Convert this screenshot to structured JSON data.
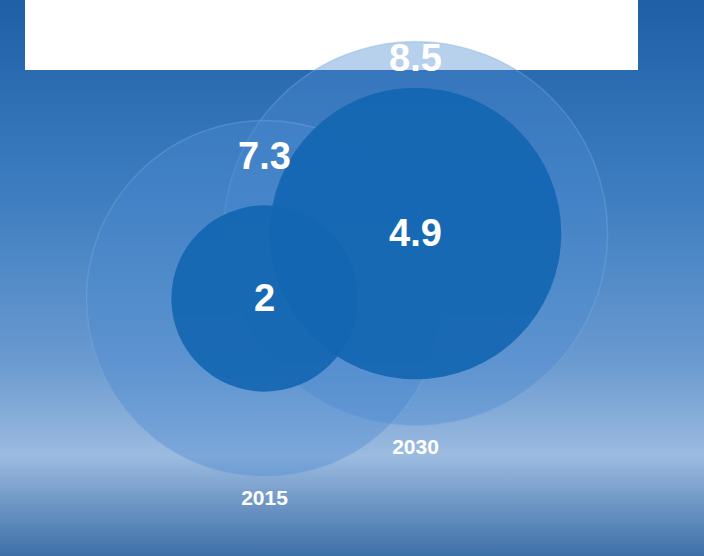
{
  "chart_data": {
    "type": "bubble",
    "categories": [
      "2015",
      "2030"
    ],
    "values": [
      7.3,
      8.5
    ],
    "inner_values": [
      2,
      4.9
    ],
    "data_labels": true
  }
}
